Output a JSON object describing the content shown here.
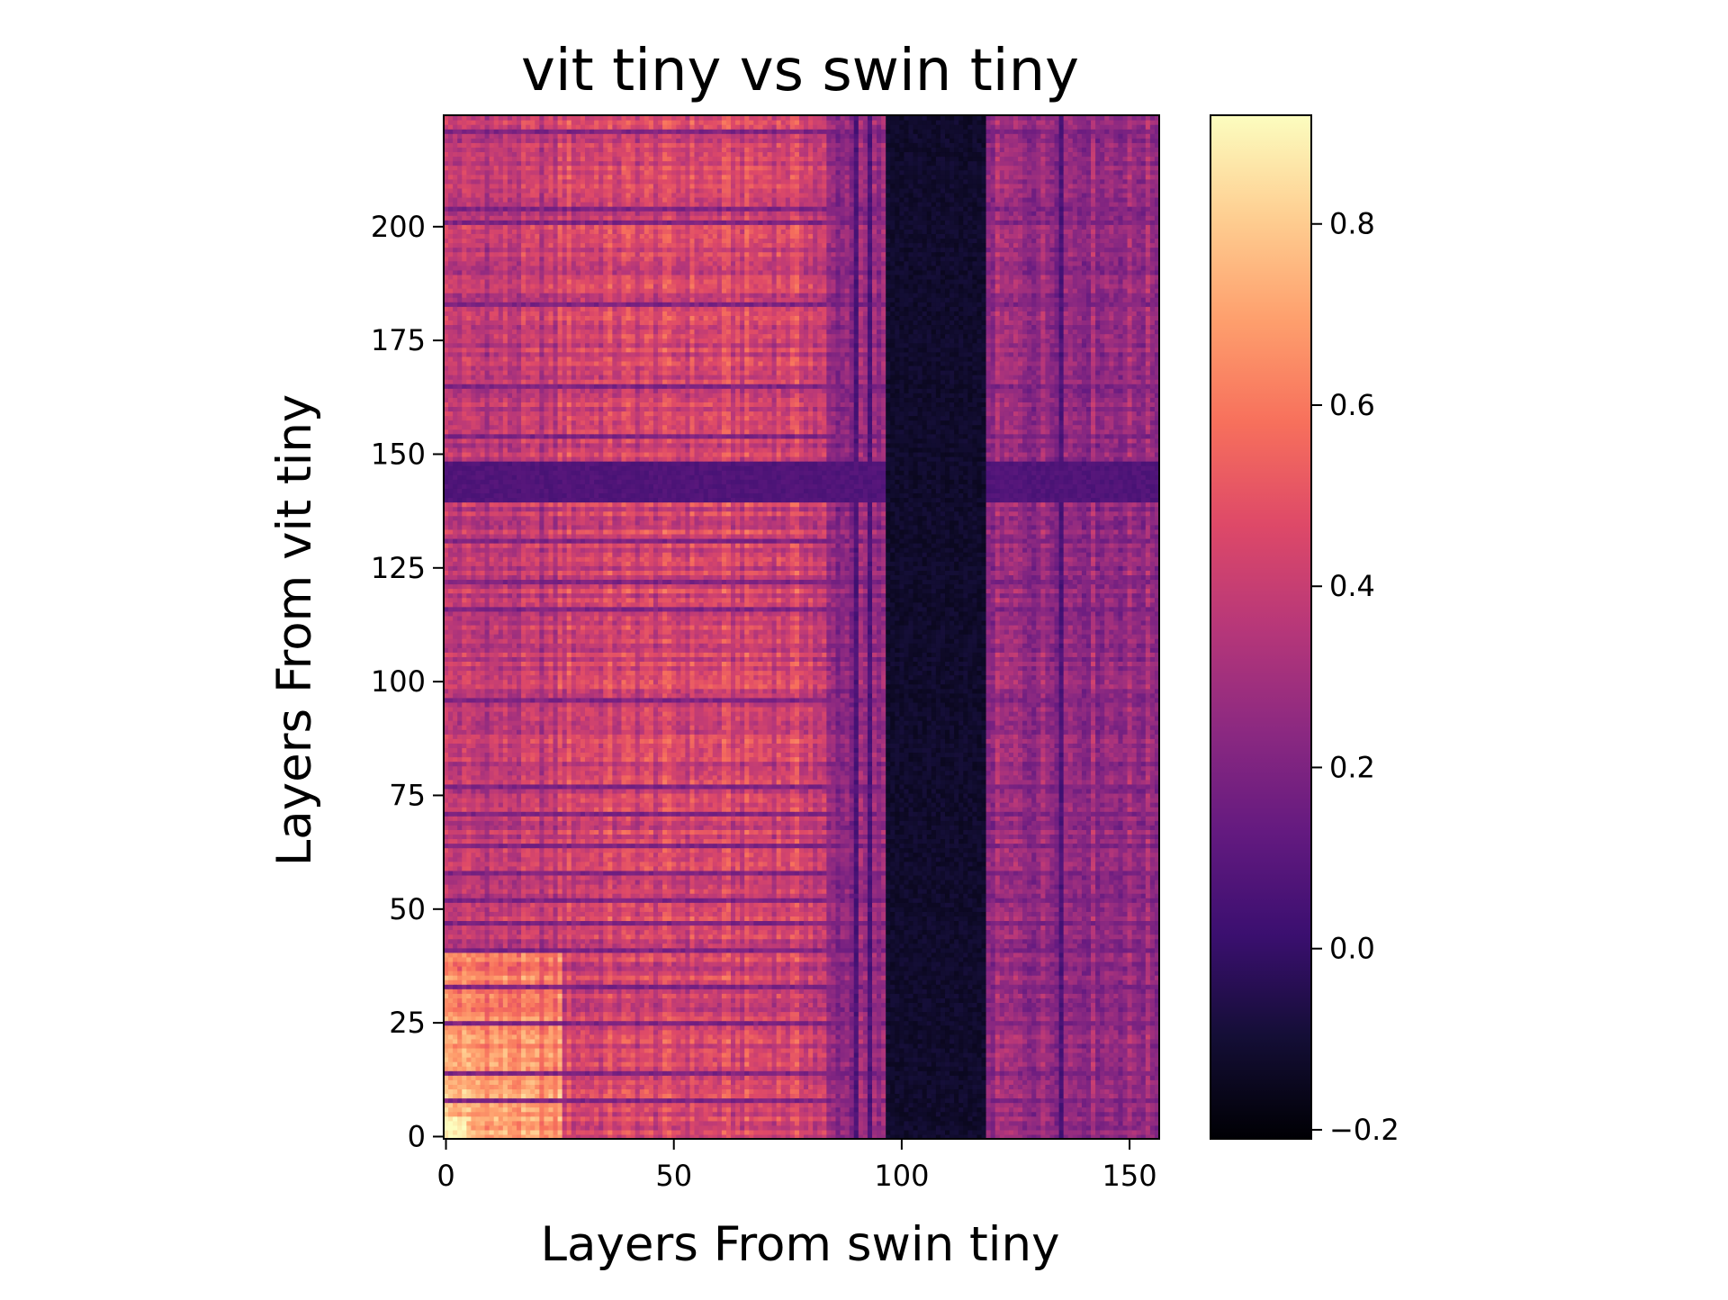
{
  "chart_data": {
    "type": "heatmap",
    "title": "vit tiny vs swin tiny",
    "xlabel": "Layers From swin tiny",
    "ylabel": "Layers From vit tiny",
    "x_range": [
      0,
      157
    ],
    "y_range": [
      0,
      225
    ],
    "x_ticks": [
      0,
      50,
      100,
      150
    ],
    "y_ticks": [
      0,
      25,
      50,
      75,
      100,
      125,
      150,
      175,
      200
    ],
    "colormap": "magma",
    "color_range": [
      -0.21,
      0.92
    ],
    "colorbar_ticks": [
      -0.2,
      0.0,
      0.2,
      0.4,
      0.6,
      0.8
    ],
    "colorbar_tick_labels": [
      "−0.2",
      "0.0",
      "0.2",
      "0.4",
      "0.6",
      "0.8"
    ],
    "grid": false,
    "description_of_pattern": {
      "bright_bottom_left_block": {
        "x": [
          0,
          25
        ],
        "y": [
          0,
          40
        ],
        "value": 0.8
      },
      "dark_vertical_band": {
        "x": [
          97,
          118
        ],
        "value": -0.15
      },
      "secondary_dark_columns": [
        90,
        93,
        100,
        104,
        106,
        135
      ],
      "dark_horizontal_band": {
        "y": [
          140,
          148
        ],
        "value": 0.05
      },
      "thin_dark_rows": [
        8,
        14,
        25,
        33,
        41,
        47,
        52,
        58,
        64,
        71,
        77,
        96,
        116,
        122,
        131,
        154,
        165,
        183,
        201,
        204,
        221
      ],
      "warm_region": {
        "x": [
          25,
          90
        ],
        "value": 0.6
      }
    }
  }
}
